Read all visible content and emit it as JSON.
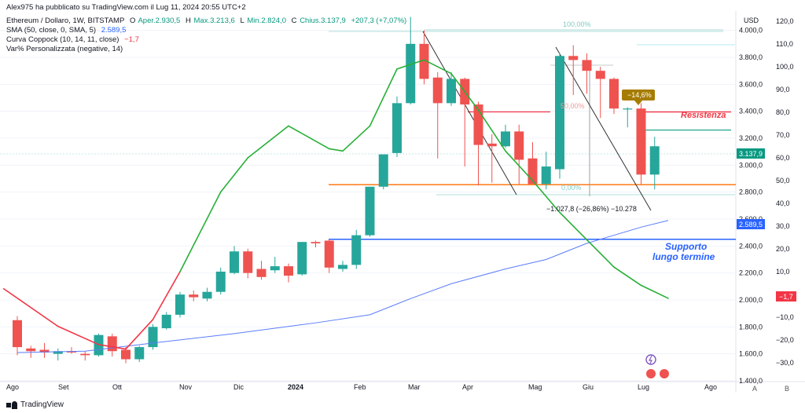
{
  "header": {
    "author_line": "Alex975 ha pubblicato su TradingView.com il Lug 11, 2024 20:55 UTC+2",
    "symbol": "Ethereum / Dollaro, 1W, BITSTAMP",
    "ohlc": {
      "open_label": "O",
      "open": "Aper.2.930,5",
      "high_label": "H",
      "high": "Max.3.213,6",
      "low_label": "L",
      "low": "Min.2.824,0",
      "close_label": "C",
      "close": "Chius.3.137,9",
      "change": "+207,3 (+7,07%)"
    },
    "indicators": [
      {
        "label": "SMA (50, close, 0, SMA, 5)",
        "value": "2.589,5",
        "color": "#2962ff"
      },
      {
        "label": "Curva Coppock (10, 14, 11, close)",
        "value": "−1,7",
        "color": "#f23645"
      },
      {
        "label": "Var% Personalizzata (negative, 14)",
        "value": "",
        "color": "#131722"
      }
    ]
  },
  "brand": "TradingView",
  "axis_buttons": {
    "a": "A",
    "b": "B"
  },
  "chart_data": {
    "type": "candlestick",
    "left_axis": {
      "label": "USD",
      "ticks": [
        1400,
        1600,
        1800,
        2000,
        2200,
        2400,
        2600,
        2800,
        3000,
        3200,
        3400,
        3600,
        3800,
        4000
      ],
      "tick_labels": [
        "1.400,0",
        "1.600,0",
        "1.800,0",
        "2.000,0",
        "2.200,0",
        "2.400,0",
        "2.600,0",
        "2.800,0",
        "3.000,0",
        "3.200,0",
        "3.400,0",
        "3.600,0",
        "3.800,0",
        "4.000,0"
      ]
    },
    "right_axis": {
      "ticks": [
        -30,
        -20,
        -10,
        0,
        10,
        20,
        30,
        40,
        50,
        60,
        70,
        80,
        90,
        100,
        110,
        120
      ],
      "tick_labels": [
        "−30,0",
        "−20,0",
        "−10,0",
        "0,0",
        "10,0",
        "20,0",
        "30,0",
        "40,0",
        "50,0",
        "60,0",
        "70,0",
        "80,0",
        "90,0",
        "100,0",
        "110,0",
        "120,0"
      ]
    },
    "x_labels": [
      "Ago",
      "Set",
      "Ott",
      "Nov",
      "Dic",
      "2024",
      "Feb",
      "Mar",
      "Apr",
      "Mag",
      "Giu",
      "Lug",
      "Ago"
    ],
    "candles": [
      {
        "o": 1850,
        "h": 1880,
        "l": 1590,
        "c": 1650
      },
      {
        "o": 1640,
        "h": 1660,
        "l": 1570,
        "c": 1620
      },
      {
        "o": 1630,
        "h": 1680,
        "l": 1570,
        "c": 1610
      },
      {
        "o": 1600,
        "h": 1640,
        "l": 1550,
        "c": 1620
      },
      {
        "o": 1620,
        "h": 1650,
        "l": 1600,
        "c": 1610
      },
      {
        "o": 1600,
        "h": 1620,
        "l": 1550,
        "c": 1590
      },
      {
        "o": 1590,
        "h": 1750,
        "l": 1580,
        "c": 1740
      },
      {
        "o": 1730,
        "h": 1750,
        "l": 1580,
        "c": 1620
      },
      {
        "o": 1630,
        "h": 1650,
        "l": 1530,
        "c": 1560
      },
      {
        "o": 1560,
        "h": 1660,
        "l": 1540,
        "c": 1650
      },
      {
        "o": 1650,
        "h": 1820,
        "l": 1630,
        "c": 1800
      },
      {
        "o": 1790,
        "h": 1910,
        "l": 1780,
        "c": 1890
      },
      {
        "o": 1890,
        "h": 2060,
        "l": 1870,
        "c": 2040
      },
      {
        "o": 2040,
        "h": 2070,
        "l": 1990,
        "c": 2020
      },
      {
        "o": 2010,
        "h": 2090,
        "l": 1990,
        "c": 2060
      },
      {
        "o": 2060,
        "h": 2240,
        "l": 2040,
        "c": 2210
      },
      {
        "o": 2200,
        "h": 2400,
        "l": 2190,
        "c": 2360
      },
      {
        "o": 2360,
        "h": 2380,
        "l": 2160,
        "c": 2200
      },
      {
        "o": 2230,
        "h": 2290,
        "l": 2150,
        "c": 2170
      },
      {
        "o": 2220,
        "h": 2320,
        "l": 2200,
        "c": 2250
      },
      {
        "o": 2250,
        "h": 2270,
        "l": 2130,
        "c": 2180
      },
      {
        "o": 2190,
        "h": 2430,
        "l": 2180,
        "c": 2430
      },
      {
        "o": 2430,
        "h": 2440,
        "l": 2390,
        "c": 2420
      },
      {
        "o": 2440,
        "h": 2450,
        "l": 2200,
        "c": 2240
      },
      {
        "o": 2230,
        "h": 2290,
        "l": 2210,
        "c": 2260
      },
      {
        "o": 2260,
        "h": 2520,
        "l": 2230,
        "c": 2480
      },
      {
        "o": 2480,
        "h": 2820,
        "l": 2470,
        "c": 2840
      },
      {
        "o": 2840,
        "h": 3080,
        "l": 2820,
        "c": 3080
      },
      {
        "o": 3090,
        "h": 3510,
        "l": 3060,
        "c": 3460
      },
      {
        "o": 3460,
        "h": 4100,
        "l": 3450,
        "c": 3900
      },
      {
        "o": 3900,
        "h": 4000,
        "l": 3600,
        "c": 3640
      },
      {
        "o": 3650,
        "h": 3690,
        "l": 3050,
        "c": 3460
      },
      {
        "o": 3460,
        "h": 3690,
        "l": 3440,
        "c": 3640
      },
      {
        "o": 3640,
        "h": 3650,
        "l": 2990,
        "c": 3450
      },
      {
        "o": 3450,
        "h": 3470,
        "l": 2850,
        "c": 3150
      },
      {
        "o": 3160,
        "h": 3230,
        "l": 2870,
        "c": 3140
      },
      {
        "o": 3140,
        "h": 3300,
        "l": 3130,
        "c": 3250
      },
      {
        "o": 3250,
        "h": 3300,
        "l": 2860,
        "c": 3040
      },
      {
        "o": 3050,
        "h": 3170,
        "l": 2870,
        "c": 2860
      },
      {
        "o": 2860,
        "h": 3100,
        "l": 2820,
        "c": 2990
      },
      {
        "o": 2970,
        "h": 3830,
        "l": 2900,
        "c": 3810
      },
      {
        "o": 3810,
        "h": 3890,
        "l": 3520,
        "c": 3780
      },
      {
        "o": 3780,
        "h": 3830,
        "l": 3530,
        "c": 3700
      },
      {
        "o": 3700,
        "h": 3730,
        "l": 3350,
        "c": 3640
      },
      {
        "o": 3640,
        "h": 3650,
        "l": 3380,
        "c": 3420
      },
      {
        "o": 3420,
        "h": 3430,
        "l": 3280,
        "c": 3420
      },
      {
        "o": 3420,
        "h": 3460,
        "l": 2860,
        "c": 2930
      },
      {
        "o": 2930,
        "h": 3210,
        "l": 2820,
        "c": 3140
      }
    ],
    "sma50": [
      [
        0,
        1610
      ],
      [
        5,
        1620
      ],
      [
        10,
        1680
      ],
      [
        16,
        1750
      ],
      [
        22,
        1830
      ],
      [
        26,
        1890
      ],
      [
        29,
        2010
      ],
      [
        32,
        2120
      ],
      [
        36,
        2230
      ],
      [
        39,
        2300
      ],
      [
        42,
        2420
      ],
      [
        46,
        2540
      ],
      [
        48,
        2590
      ]
    ],
    "coppock": [
      [
        -1,
        2.5
      ],
      [
        3,
        -14
      ],
      [
        6,
        -22
      ],
      [
        8,
        -24
      ],
      [
        10,
        -11
      ],
      [
        12,
        10
      ],
      [
        15,
        45
      ],
      [
        17,
        60
      ],
      [
        20,
        74
      ],
      [
        23,
        64
      ],
      [
        24,
        63
      ],
      [
        26,
        74
      ],
      [
        28,
        99
      ],
      [
        30,
        103
      ],
      [
        32,
        97
      ],
      [
        34,
        81
      ],
      [
        36,
        63
      ],
      [
        38,
        50
      ],
      [
        40,
        36
      ],
      [
        42,
        24
      ],
      [
        44,
        12
      ],
      [
        46,
        4
      ],
      [
        48,
        -1.7
      ]
    ],
    "series": [
      {
        "name": "SMA (50, close, 0, SMA, 5)",
        "color": "#2962ff",
        "last_label": "2.589,5"
      },
      {
        "name": "Curva Coppock (10, 14, 11, close)",
        "color": "#f23645",
        "last_label": "−1,7"
      }
    ],
    "levels": {
      "resistance": {
        "value": 3395,
        "label": "Resistenza",
        "color": "#f23645"
      },
      "secondary_resistance": {
        "value": 3260,
        "color": "#089981"
      },
      "orange_support": {
        "value": 2855,
        "color": "#ff6d00"
      },
      "long_support": {
        "value": 2450,
        "label": "Supporto lungo termine",
        "color": "#2962ff"
      }
    },
    "annotations": {
      "fib_top": "100,00%",
      "fib_mid": "50,00%",
      "fib_bottom": "0,00%",
      "drop_measure": "−1.027,8 (−26,86%) −10.278",
      "drop_badge": "−14,6%",
      "price_tag": "3.137,9",
      "sma_tag": "2.589,5",
      "coppock_tag": "−1,7"
    },
    "ylim": [
      1400,
      4150
    ]
  }
}
